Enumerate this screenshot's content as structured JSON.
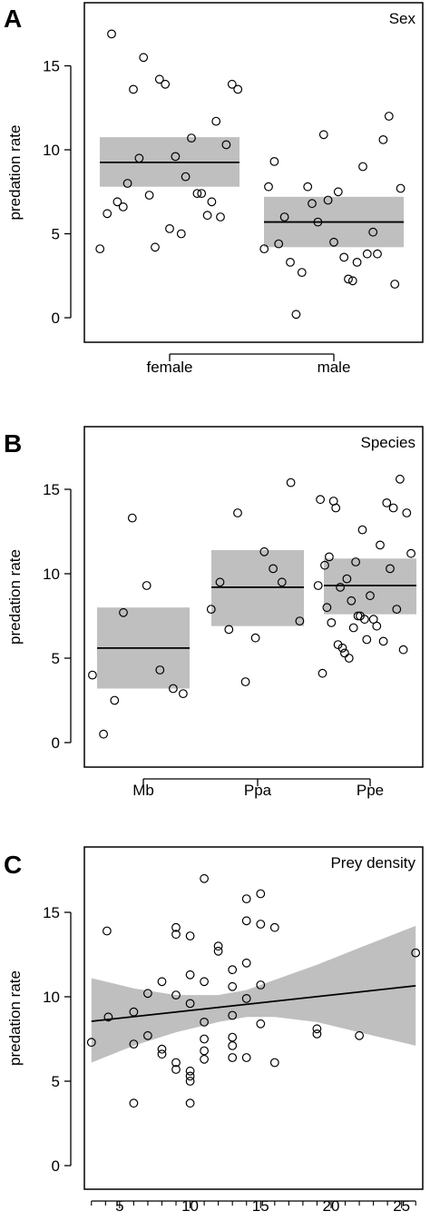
{
  "chart_data": [
    {
      "panel": "A",
      "type": "scatter",
      "title": "Sex",
      "ylabel": "predation rate",
      "xlabel": "",
      "categories": [
        "female",
        "male"
      ],
      "ylim": [
        0,
        18
      ],
      "yticks": [
        0,
        5,
        10,
        15
      ],
      "grid": false,
      "legend": "none",
      "estimates": [
        {
          "category": "female",
          "mean": 9.25,
          "lower": 7.8,
          "upper": 10.75
        },
        {
          "category": "male",
          "mean": 5.7,
          "lower": 4.2,
          "upper": 7.2
        }
      ],
      "points": [
        {
          "category": "female",
          "offset": -0.48,
          "y": 4.1
        },
        {
          "category": "female",
          "offset": -0.43,
          "y": 6.2
        },
        {
          "category": "female",
          "offset": -0.4,
          "y": 16.9
        },
        {
          "category": "female",
          "offset": -0.36,
          "y": 6.9
        },
        {
          "category": "female",
          "offset": -0.32,
          "y": 6.6
        },
        {
          "category": "female",
          "offset": -0.29,
          "y": 8.0
        },
        {
          "category": "female",
          "offset": -0.25,
          "y": 13.6
        },
        {
          "category": "female",
          "offset": -0.21,
          "y": 9.5
        },
        {
          "category": "female",
          "offset": -0.18,
          "y": 15.5
        },
        {
          "category": "female",
          "offset": -0.14,
          "y": 7.3
        },
        {
          "category": "female",
          "offset": -0.1,
          "y": 4.2
        },
        {
          "category": "female",
          "offset": -0.07,
          "y": 14.2
        },
        {
          "category": "female",
          "offset": -0.03,
          "y": 13.9
        },
        {
          "category": "female",
          "offset": 0.0,
          "y": 5.3
        },
        {
          "category": "female",
          "offset": 0.04,
          "y": 9.6
        },
        {
          "category": "female",
          "offset": 0.08,
          "y": 5.0
        },
        {
          "category": "female",
          "offset": 0.11,
          "y": 8.4
        },
        {
          "category": "female",
          "offset": 0.15,
          "y": 10.7
        },
        {
          "category": "female",
          "offset": 0.19,
          "y": 7.4
        },
        {
          "category": "female",
          "offset": 0.22,
          "y": 7.4
        },
        {
          "category": "female",
          "offset": 0.26,
          "y": 6.1
        },
        {
          "category": "female",
          "offset": 0.29,
          "y": 6.9
        },
        {
          "category": "female",
          "offset": 0.32,
          "y": 11.7
        },
        {
          "category": "female",
          "offset": 0.35,
          "y": 6.0
        },
        {
          "category": "female",
          "offset": 0.39,
          "y": 10.3
        },
        {
          "category": "female",
          "offset": 0.43,
          "y": 13.9
        },
        {
          "category": "female",
          "offset": 0.47,
          "y": 13.6
        },
        {
          "category": "male",
          "offset": -0.48,
          "y": 4.1
        },
        {
          "category": "male",
          "offset": -0.45,
          "y": 7.8
        },
        {
          "category": "male",
          "offset": -0.41,
          "y": 9.3
        },
        {
          "category": "male",
          "offset": -0.38,
          "y": 4.4
        },
        {
          "category": "male",
          "offset": -0.34,
          "y": 6.0
        },
        {
          "category": "male",
          "offset": -0.3,
          "y": 3.3
        },
        {
          "category": "male",
          "offset": -0.26,
          "y": 0.2
        },
        {
          "category": "male",
          "offset": -0.22,
          "y": 2.7
        },
        {
          "category": "male",
          "offset": -0.18,
          "y": 7.8
        },
        {
          "category": "male",
          "offset": -0.15,
          "y": 6.8
        },
        {
          "category": "male",
          "offset": -0.11,
          "y": 5.7
        },
        {
          "category": "male",
          "offset": -0.07,
          "y": 10.9
        },
        {
          "category": "male",
          "offset": -0.04,
          "y": 7.0
        },
        {
          "category": "male",
          "offset": 0.0,
          "y": 4.5
        },
        {
          "category": "male",
          "offset": 0.03,
          "y": 7.5
        },
        {
          "category": "male",
          "offset": 0.07,
          "y": 3.6
        },
        {
          "category": "male",
          "offset": 0.1,
          "y": 2.3
        },
        {
          "category": "male",
          "offset": 0.13,
          "y": 2.2
        },
        {
          "category": "male",
          "offset": 0.16,
          "y": 3.3
        },
        {
          "category": "male",
          "offset": 0.2,
          "y": 9.0
        },
        {
          "category": "male",
          "offset": 0.23,
          "y": 3.8
        },
        {
          "category": "male",
          "offset": 0.27,
          "y": 5.1
        },
        {
          "category": "male",
          "offset": 0.3,
          "y": 3.8
        },
        {
          "category": "male",
          "offset": 0.34,
          "y": 10.6
        },
        {
          "category": "male",
          "offset": 0.38,
          "y": 12.0
        },
        {
          "category": "male",
          "offset": 0.42,
          "y": 2.0
        },
        {
          "category": "male",
          "offset": 0.46,
          "y": 7.7
        }
      ]
    },
    {
      "panel": "B",
      "type": "scatter",
      "title": "Species",
      "ylabel": "predation rate",
      "xlabel": "",
      "categories": [
        "Mb",
        "Ppa",
        "Ppe"
      ],
      "ylim": [
        0,
        18
      ],
      "yticks": [
        0,
        5,
        10,
        15
      ],
      "grid": false,
      "legend": "none",
      "estimates": [
        {
          "category": "Mb",
          "mean": 5.6,
          "lower": 3.2,
          "upper": 8.0
        },
        {
          "category": "Ppa",
          "mean": 9.2,
          "lower": 6.9,
          "upper": 11.4
        },
        {
          "category": "Ppe",
          "mean": 9.3,
          "lower": 7.6,
          "upper": 10.9
        }
      ],
      "points": [
        {
          "category": "Mb",
          "offset": -0.46,
          "y": 4.0
        },
        {
          "category": "Mb",
          "offset": -0.36,
          "y": 0.5
        },
        {
          "category": "Mb",
          "offset": -0.26,
          "y": 2.5
        },
        {
          "category": "Mb",
          "offset": -0.18,
          "y": 7.7
        },
        {
          "category": "Mb",
          "offset": -0.1,
          "y": 13.3
        },
        {
          "category": "Mb",
          "offset": 0.03,
          "y": 9.3
        },
        {
          "category": "Mb",
          "offset": 0.15,
          "y": 4.3
        },
        {
          "category": "Mb",
          "offset": 0.27,
          "y": 3.2
        },
        {
          "category": "Mb",
          "offset": 0.36,
          "y": 2.9
        },
        {
          "category": "Ppa",
          "offset": -0.42,
          "y": 7.9
        },
        {
          "category": "Ppa",
          "offset": -0.34,
          "y": 9.5
        },
        {
          "category": "Ppa",
          "offset": -0.26,
          "y": 6.7
        },
        {
          "category": "Ppa",
          "offset": -0.18,
          "y": 13.6
        },
        {
          "category": "Ppa",
          "offset": -0.11,
          "y": 3.6
        },
        {
          "category": "Ppa",
          "offset": -0.02,
          "y": 6.2
        },
        {
          "category": "Ppa",
          "offset": 0.06,
          "y": 11.3
        },
        {
          "category": "Ppa",
          "offset": 0.14,
          "y": 10.3
        },
        {
          "category": "Ppa",
          "offset": 0.22,
          "y": 9.5
        },
        {
          "category": "Ppa",
          "offset": 0.3,
          "y": 15.4
        },
        {
          "category": "Ppa",
          "offset": 0.38,
          "y": 7.2
        },
        {
          "category": "Ppe",
          "offset": -0.47,
          "y": 9.3
        },
        {
          "category": "Ppe",
          "offset": -0.45,
          "y": 14.4
        },
        {
          "category": "Ppe",
          "offset": -0.43,
          "y": 4.1
        },
        {
          "category": "Ppe",
          "offset": -0.41,
          "y": 10.5
        },
        {
          "category": "Ppe",
          "offset": -0.39,
          "y": 8.0
        },
        {
          "category": "Ppe",
          "offset": -0.37,
          "y": 11.0
        },
        {
          "category": "Ppe",
          "offset": -0.35,
          "y": 7.1
        },
        {
          "category": "Ppe",
          "offset": -0.33,
          "y": 14.3
        },
        {
          "category": "Ppe",
          "offset": -0.31,
          "y": 13.9
        },
        {
          "category": "Ppe",
          "offset": -0.29,
          "y": 5.8
        },
        {
          "category": "Ppe",
          "offset": -0.27,
          "y": 9.2
        },
        {
          "category": "Ppe",
          "offset": -0.25,
          "y": 5.6
        },
        {
          "category": "Ppe",
          "offset": -0.23,
          "y": 5.3
        },
        {
          "category": "Ppe",
          "offset": -0.21,
          "y": 9.7
        },
        {
          "category": "Ppe",
          "offset": -0.19,
          "y": 5.0
        },
        {
          "category": "Ppe",
          "offset": -0.17,
          "y": 8.4
        },
        {
          "category": "Ppe",
          "offset": -0.15,
          "y": 6.8
        },
        {
          "category": "Ppe",
          "offset": -0.13,
          "y": 10.7
        },
        {
          "category": "Ppe",
          "offset": -0.11,
          "y": 7.5
        },
        {
          "category": "Ppe",
          "offset": -0.09,
          "y": 7.5
        },
        {
          "category": "Ppe",
          "offset": -0.07,
          "y": 12.6
        },
        {
          "category": "Ppe",
          "offset": -0.05,
          "y": 7.3
        },
        {
          "category": "Ppe",
          "offset": -0.03,
          "y": 6.1
        },
        {
          "category": "Ppe",
          "offset": 0.0,
          "y": 8.7
        },
        {
          "category": "Ppe",
          "offset": 0.03,
          "y": 7.3
        },
        {
          "category": "Ppe",
          "offset": 0.06,
          "y": 6.9
        },
        {
          "category": "Ppe",
          "offset": 0.09,
          "y": 11.7
        },
        {
          "category": "Ppe",
          "offset": 0.12,
          "y": 6.0
        },
        {
          "category": "Ppe",
          "offset": 0.15,
          "y": 14.2
        },
        {
          "category": "Ppe",
          "offset": 0.18,
          "y": 10.3
        },
        {
          "category": "Ppe",
          "offset": 0.21,
          "y": 13.9
        },
        {
          "category": "Ppe",
          "offset": 0.24,
          "y": 7.9
        },
        {
          "category": "Ppe",
          "offset": 0.27,
          "y": 15.6
        },
        {
          "category": "Ppe",
          "offset": 0.3,
          "y": 5.5
        },
        {
          "category": "Ppe",
          "offset": 0.33,
          "y": 13.6
        },
        {
          "category": "Ppe",
          "offset": 0.37,
          "y": 11.2
        }
      ]
    },
    {
      "panel": "C",
      "type": "scatter",
      "title": "Prey density",
      "ylabel": "predation rate",
      "xlabel": "",
      "xlim": [
        2.5,
        26.5
      ],
      "xticks": [
        5,
        10,
        15,
        20,
        25
      ],
      "ylim": [
        0,
        18
      ],
      "yticks": [
        0,
        5,
        10,
        15
      ],
      "grid": false,
      "legend": "none",
      "fit": {
        "line": [
          [
            3,
            8.55
          ],
          [
            26,
            10.65
          ]
        ],
        "band": [
          {
            "x": 3,
            "lower": 6.1,
            "upper": 11.1
          },
          {
            "x": 6,
            "lower": 7.1,
            "upper": 10.5
          },
          {
            "x": 9,
            "lower": 7.9,
            "upper": 10.1
          },
          {
            "x": 12,
            "lower": 8.5,
            "upper": 10.1
          },
          {
            "x": 14,
            "lower": 8.8,
            "upper": 10.4
          },
          {
            "x": 16,
            "lower": 8.8,
            "upper": 11.0
          },
          {
            "x": 19,
            "lower": 8.5,
            "upper": 11.9
          },
          {
            "x": 22,
            "lower": 7.9,
            "upper": 12.9
          },
          {
            "x": 26,
            "lower": 7.1,
            "upper": 14.2
          }
        ]
      },
      "points": [
        {
          "x": 3.0,
          "y": 7.3
        },
        {
          "x": 4.1,
          "y": 13.9
        },
        {
          "x": 4.2,
          "y": 8.8
        },
        {
          "x": 6.0,
          "y": 7.2
        },
        {
          "x": 6.0,
          "y": 9.1
        },
        {
          "x": 6.0,
          "y": 3.7
        },
        {
          "x": 7.0,
          "y": 10.2
        },
        {
          "x": 7.0,
          "y": 7.7
        },
        {
          "x": 8.0,
          "y": 10.9
        },
        {
          "x": 8.0,
          "y": 6.9
        },
        {
          "x": 8.0,
          "y": 6.6
        },
        {
          "x": 9.0,
          "y": 14.1
        },
        {
          "x": 9.0,
          "y": 13.7
        },
        {
          "x": 9.0,
          "y": 10.1
        },
        {
          "x": 9.0,
          "y": 6.1
        },
        {
          "x": 9.0,
          "y": 5.7
        },
        {
          "x": 10.0,
          "y": 13.6
        },
        {
          "x": 10.0,
          "y": 11.3
        },
        {
          "x": 10.0,
          "y": 9.6
        },
        {
          "x": 10.0,
          "y": 5.6
        },
        {
          "x": 10.0,
          "y": 5.3
        },
        {
          "x": 10.0,
          "y": 5.0
        },
        {
          "x": 10.0,
          "y": 3.7
        },
        {
          "x": 11.0,
          "y": 17.0
        },
        {
          "x": 11.0,
          "y": 10.9
        },
        {
          "x": 11.0,
          "y": 8.5
        },
        {
          "x": 11.0,
          "y": 7.5
        },
        {
          "x": 11.0,
          "y": 6.8
        },
        {
          "x": 11.0,
          "y": 6.3
        },
        {
          "x": 12.0,
          "y": 13.0
        },
        {
          "x": 12.0,
          "y": 12.7
        },
        {
          "x": 13.0,
          "y": 11.6
        },
        {
          "x": 13.0,
          "y": 10.6
        },
        {
          "x": 13.0,
          "y": 8.9
        },
        {
          "x": 13.0,
          "y": 7.6
        },
        {
          "x": 13.0,
          "y": 7.1
        },
        {
          "x": 13.0,
          "y": 6.4
        },
        {
          "x": 14.0,
          "y": 15.8
        },
        {
          "x": 14.0,
          "y": 14.5
        },
        {
          "x": 14.0,
          "y": 12.0
        },
        {
          "x": 14.0,
          "y": 9.9
        },
        {
          "x": 14.0,
          "y": 6.4
        },
        {
          "x": 15.0,
          "y": 16.1
        },
        {
          "x": 15.0,
          "y": 14.3
        },
        {
          "x": 15.0,
          "y": 10.7
        },
        {
          "x": 15.0,
          "y": 8.4
        },
        {
          "x": 16.0,
          "y": 14.1
        },
        {
          "x": 16.0,
          "y": 6.1
        },
        {
          "x": 19.0,
          "y": 8.1
        },
        {
          "x": 19.0,
          "y": 7.8
        },
        {
          "x": 22.0,
          "y": 7.7
        },
        {
          "x": 26.0,
          "y": 12.6
        }
      ]
    }
  ]
}
